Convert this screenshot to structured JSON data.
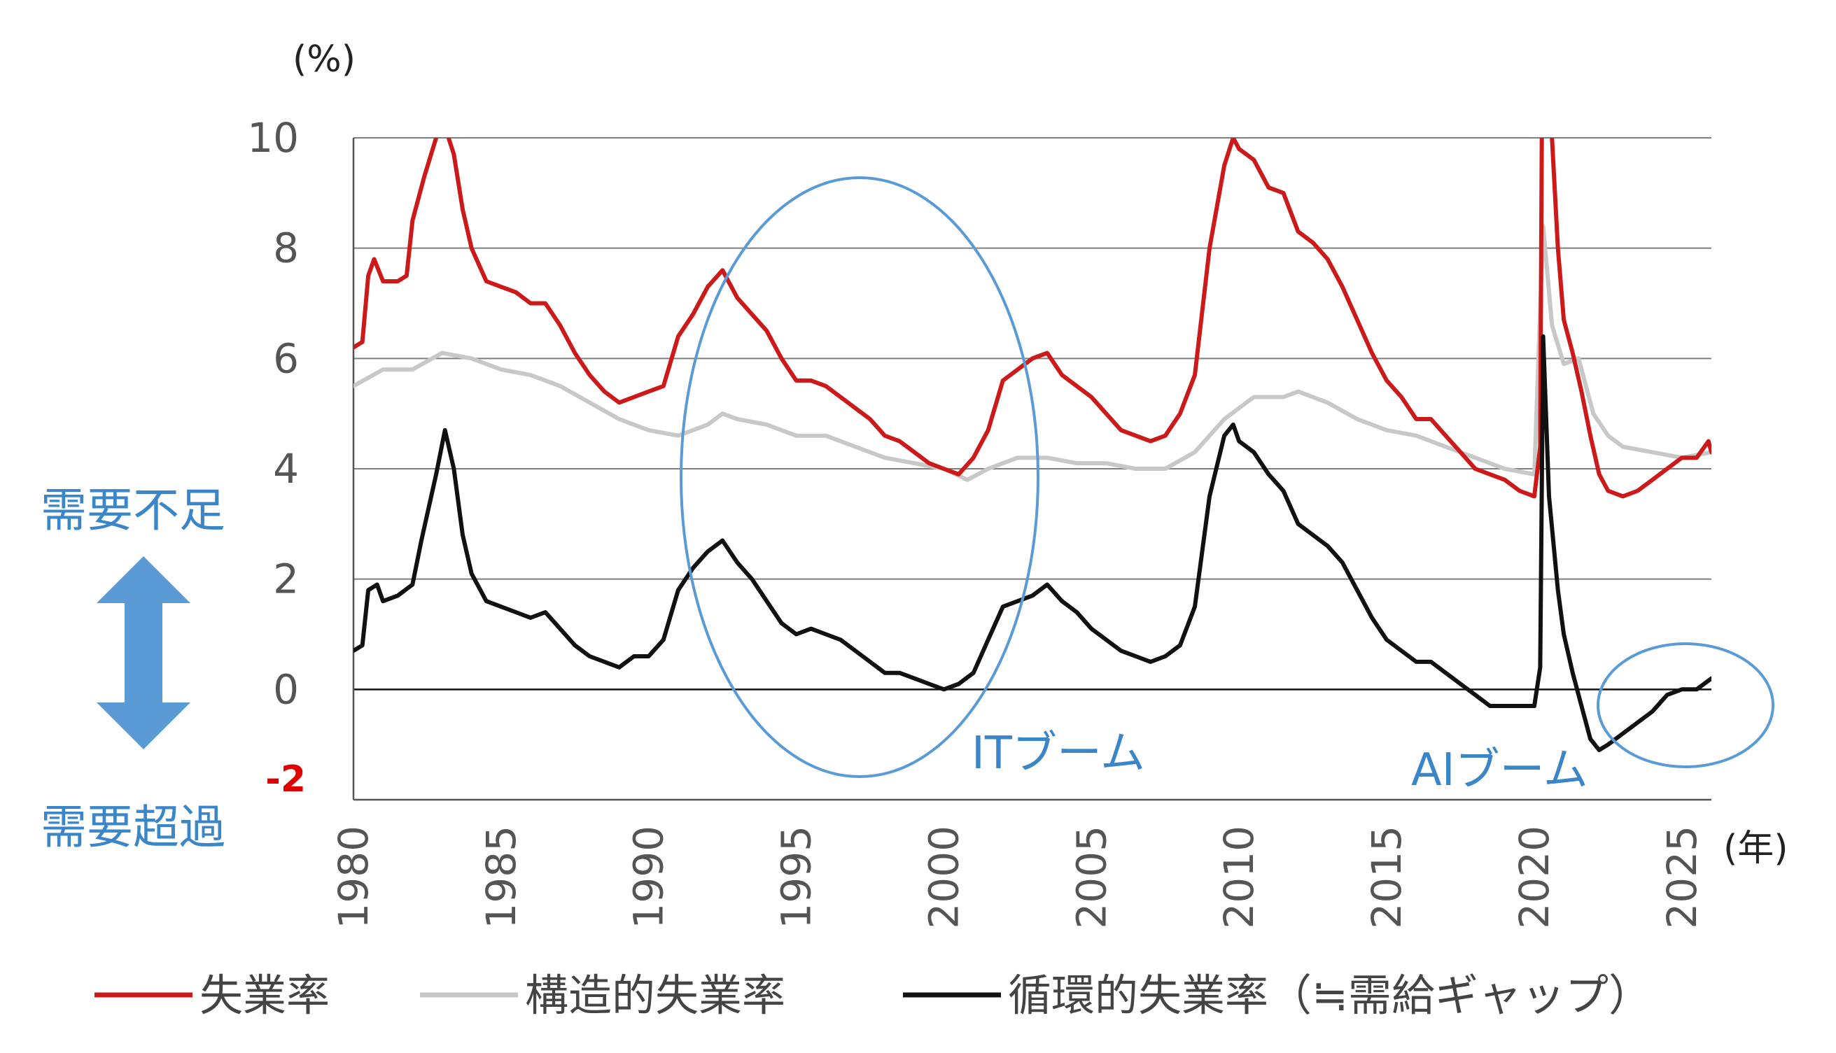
{
  "chart_data": {
    "type": "line",
    "title": "",
    "ylabel": "(%)",
    "xlabel": "(年)",
    "xlim": [
      1980,
      2026
    ],
    "ylim": [
      -2,
      10
    ],
    "yticks": [
      10,
      8,
      6,
      4,
      2,
      0,
      -2
    ],
    "xticks": [
      1980,
      1985,
      1990,
      1995,
      2000,
      2005,
      2010,
      2015,
      2020,
      2025
    ],
    "grid": true,
    "series": [
      {
        "name": "失業率",
        "color": "#cc1a1a",
        "points": [
          [
            1980.0,
            6.2
          ],
          [
            1980.3,
            6.3
          ],
          [
            1980.5,
            7.5
          ],
          [
            1980.7,
            7.8
          ],
          [
            1981.0,
            7.4
          ],
          [
            1981.5,
            7.4
          ],
          [
            1981.8,
            7.5
          ],
          [
            1982.0,
            8.5
          ],
          [
            1982.4,
            9.3
          ],
          [
            1982.8,
            10.0
          ],
          [
            1983.1,
            10.2
          ],
          [
            1983.4,
            9.7
          ],
          [
            1983.7,
            8.7
          ],
          [
            1984.0,
            8.0
          ],
          [
            1984.5,
            7.4
          ],
          [
            1985.0,
            7.3
          ],
          [
            1985.5,
            7.2
          ],
          [
            1986.0,
            7.0
          ],
          [
            1986.5,
            7.0
          ],
          [
            1987.0,
            6.6
          ],
          [
            1987.5,
            6.1
          ],
          [
            1988.0,
            5.7
          ],
          [
            1988.5,
            5.4
          ],
          [
            1989.0,
            5.2
          ],
          [
            1989.5,
            5.3
          ],
          [
            1990.0,
            5.4
          ],
          [
            1990.5,
            5.5
          ],
          [
            1991.0,
            6.4
          ],
          [
            1991.5,
            6.8
          ],
          [
            1992.0,
            7.3
          ],
          [
            1992.5,
            7.6
          ],
          [
            1993.0,
            7.1
          ],
          [
            1993.5,
            6.8
          ],
          [
            1994.0,
            6.5
          ],
          [
            1994.5,
            6.0
          ],
          [
            1995.0,
            5.6
          ],
          [
            1995.5,
            5.6
          ],
          [
            1996.0,
            5.5
          ],
          [
            1996.5,
            5.3
          ],
          [
            1997.0,
            5.1
          ],
          [
            1997.5,
            4.9
          ],
          [
            1998.0,
            4.6
          ],
          [
            1998.5,
            4.5
          ],
          [
            1999.0,
            4.3
          ],
          [
            1999.5,
            4.1
          ],
          [
            2000.0,
            4.0
          ],
          [
            2000.5,
            3.9
          ],
          [
            2001.0,
            4.2
          ],
          [
            2001.5,
            4.7
          ],
          [
            2002.0,
            5.6
          ],
          [
            2002.5,
            5.8
          ],
          [
            2003.0,
            6.0
          ],
          [
            2003.5,
            6.1
          ],
          [
            2004.0,
            5.7
          ],
          [
            2004.5,
            5.5
          ],
          [
            2005.0,
            5.3
          ],
          [
            2005.5,
            5.0
          ],
          [
            2006.0,
            4.7
          ],
          [
            2006.5,
            4.6
          ],
          [
            2007.0,
            4.5
          ],
          [
            2007.5,
            4.6
          ],
          [
            2008.0,
            5.0
          ],
          [
            2008.5,
            5.7
          ],
          [
            2009.0,
            8.0
          ],
          [
            2009.5,
            9.5
          ],
          [
            2009.8,
            10.0
          ],
          [
            2010.0,
            9.8
          ],
          [
            2010.5,
            9.6
          ],
          [
            2011.0,
            9.1
          ],
          [
            2011.5,
            9.0
          ],
          [
            2012.0,
            8.3
          ],
          [
            2012.5,
            8.1
          ],
          [
            2013.0,
            7.8
          ],
          [
            2013.5,
            7.3
          ],
          [
            2014.0,
            6.7
          ],
          [
            2014.5,
            6.1
          ],
          [
            2015.0,
            5.6
          ],
          [
            2015.5,
            5.3
          ],
          [
            2016.0,
            4.9
          ],
          [
            2016.5,
            4.9
          ],
          [
            2017.0,
            4.6
          ],
          [
            2017.5,
            4.3
          ],
          [
            2018.0,
            4.0
          ],
          [
            2018.5,
            3.9
          ],
          [
            2019.0,
            3.8
          ],
          [
            2019.5,
            3.6
          ],
          [
            2020.0,
            3.5
          ],
          [
            2020.2,
            4.4
          ],
          [
            2020.3,
            14.7
          ],
          [
            2020.5,
            11.0
          ],
          [
            2020.8,
            8.0
          ],
          [
            2021.0,
            6.7
          ],
          [
            2021.3,
            6.1
          ],
          [
            2021.6,
            5.4
          ],
          [
            2021.9,
            4.6
          ],
          [
            2022.2,
            3.9
          ],
          [
            2022.5,
            3.6
          ],
          [
            2023.0,
            3.5
          ],
          [
            2023.5,
            3.6
          ],
          [
            2024.0,
            3.8
          ],
          [
            2024.5,
            4.0
          ],
          [
            2025.0,
            4.2
          ],
          [
            2025.5,
            4.2
          ],
          [
            2025.9,
            4.5
          ],
          [
            2026.0,
            4.3
          ]
        ]
      },
      {
        "name": "構造的失業率",
        "color": "#c8c8c8",
        "points": [
          [
            1980.0,
            5.5
          ],
          [
            1981.0,
            5.8
          ],
          [
            1982.0,
            5.8
          ],
          [
            1983.0,
            6.1
          ],
          [
            1984.0,
            6.0
          ],
          [
            1985.0,
            5.8
          ],
          [
            1986.0,
            5.7
          ],
          [
            1987.0,
            5.5
          ],
          [
            1988.0,
            5.2
          ],
          [
            1989.0,
            4.9
          ],
          [
            1990.0,
            4.7
          ],
          [
            1991.0,
            4.6
          ],
          [
            1992.0,
            4.8
          ],
          [
            1992.5,
            5.0
          ],
          [
            1993.0,
            4.9
          ],
          [
            1994.0,
            4.8
          ],
          [
            1995.0,
            4.6
          ],
          [
            1996.0,
            4.6
          ],
          [
            1997.0,
            4.4
          ],
          [
            1998.0,
            4.2
          ],
          [
            1999.0,
            4.1
          ],
          [
            2000.0,
            4.0
          ],
          [
            2000.8,
            3.8
          ],
          [
            2001.5,
            4.0
          ],
          [
            2002.5,
            4.2
          ],
          [
            2003.5,
            4.2
          ],
          [
            2004.5,
            4.1
          ],
          [
            2005.5,
            4.1
          ],
          [
            2006.5,
            4.0
          ],
          [
            2007.5,
            4.0
          ],
          [
            2008.5,
            4.3
          ],
          [
            2009.5,
            4.9
          ],
          [
            2010.5,
            5.3
          ],
          [
            2011.5,
            5.3
          ],
          [
            2012.0,
            5.4
          ],
          [
            2013.0,
            5.2
          ],
          [
            2014.0,
            4.9
          ],
          [
            2015.0,
            4.7
          ],
          [
            2016.0,
            4.6
          ],
          [
            2017.0,
            4.4
          ],
          [
            2018.0,
            4.2
          ],
          [
            2019.0,
            4.0
          ],
          [
            2020.0,
            3.9
          ],
          [
            2020.3,
            8.4
          ],
          [
            2020.6,
            6.6
          ],
          [
            2021.0,
            5.9
          ],
          [
            2021.5,
            6.0
          ],
          [
            2022.0,
            5.0
          ],
          [
            2022.5,
            4.6
          ],
          [
            2023.0,
            4.4
          ],
          [
            2024.0,
            4.3
          ],
          [
            2025.0,
            4.2
          ],
          [
            2026.0,
            4.3
          ]
        ]
      },
      {
        "name": "循環的失業率（≒需給ギャップ）",
        "color": "#111111",
        "points": [
          [
            1980.0,
            0.7
          ],
          [
            1980.3,
            0.8
          ],
          [
            1980.5,
            1.8
          ],
          [
            1980.8,
            1.9
          ],
          [
            1981.0,
            1.6
          ],
          [
            1981.5,
            1.7
          ],
          [
            1982.0,
            1.9
          ],
          [
            1982.3,
            2.7
          ],
          [
            1982.8,
            3.9
          ],
          [
            1983.1,
            4.7
          ],
          [
            1983.4,
            4.0
          ],
          [
            1983.7,
            2.8
          ],
          [
            1984.0,
            2.1
          ],
          [
            1984.5,
            1.6
          ],
          [
            1985.0,
            1.5
          ],
          [
            1985.5,
            1.4
          ],
          [
            1986.0,
            1.3
          ],
          [
            1986.5,
            1.4
          ],
          [
            1987.0,
            1.1
          ],
          [
            1987.5,
            0.8
          ],
          [
            1988.0,
            0.6
          ],
          [
            1988.5,
            0.5
          ],
          [
            1989.0,
            0.4
          ],
          [
            1989.5,
            0.6
          ],
          [
            1990.0,
            0.6
          ],
          [
            1990.5,
            0.9
          ],
          [
            1991.0,
            1.8
          ],
          [
            1991.5,
            2.2
          ],
          [
            1992.0,
            2.5
          ],
          [
            1992.5,
            2.7
          ],
          [
            1993.0,
            2.3
          ],
          [
            1993.5,
            2.0
          ],
          [
            1994.0,
            1.6
          ],
          [
            1994.5,
            1.2
          ],
          [
            1995.0,
            1.0
          ],
          [
            1995.5,
            1.1
          ],
          [
            1996.0,
            1.0
          ],
          [
            1996.5,
            0.9
          ],
          [
            1997.0,
            0.7
          ],
          [
            1997.5,
            0.5
          ],
          [
            1998.0,
            0.3
          ],
          [
            1998.5,
            0.3
          ],
          [
            1999.0,
            0.2
          ],
          [
            1999.5,
            0.1
          ],
          [
            2000.0,
            0.0
          ],
          [
            2000.5,
            0.1
          ],
          [
            2001.0,
            0.3
          ],
          [
            2001.5,
            0.9
          ],
          [
            2002.0,
            1.5
          ],
          [
            2002.5,
            1.6
          ],
          [
            2003.0,
            1.7
          ],
          [
            2003.5,
            1.9
          ],
          [
            2004.0,
            1.6
          ],
          [
            2004.5,
            1.4
          ],
          [
            2005.0,
            1.1
          ],
          [
            2005.5,
            0.9
          ],
          [
            2006.0,
            0.7
          ],
          [
            2006.5,
            0.6
          ],
          [
            2007.0,
            0.5
          ],
          [
            2007.5,
            0.6
          ],
          [
            2008.0,
            0.8
          ],
          [
            2008.5,
            1.5
          ],
          [
            2009.0,
            3.5
          ],
          [
            2009.5,
            4.6
          ],
          [
            2009.8,
            4.8
          ],
          [
            2010.0,
            4.5
          ],
          [
            2010.5,
            4.3
          ],
          [
            2011.0,
            3.9
          ],
          [
            2011.5,
            3.6
          ],
          [
            2012.0,
            3.0
          ],
          [
            2012.5,
            2.8
          ],
          [
            2013.0,
            2.6
          ],
          [
            2013.5,
            2.3
          ],
          [
            2014.0,
            1.8
          ],
          [
            2014.5,
            1.3
          ],
          [
            2015.0,
            0.9
          ],
          [
            2015.5,
            0.7
          ],
          [
            2016.0,
            0.5
          ],
          [
            2016.5,
            0.5
          ],
          [
            2017.0,
            0.3
          ],
          [
            2017.5,
            0.1
          ],
          [
            2018.0,
            -0.1
          ],
          [
            2018.5,
            -0.3
          ],
          [
            2019.0,
            -0.3
          ],
          [
            2019.5,
            -0.3
          ],
          [
            2020.0,
            -0.3
          ],
          [
            2020.2,
            0.4
          ],
          [
            2020.3,
            6.4
          ],
          [
            2020.5,
            3.5
          ],
          [
            2020.8,
            1.8
          ],
          [
            2021.0,
            1.0
          ],
          [
            2021.3,
            0.3
          ],
          [
            2021.6,
            -0.3
          ],
          [
            2021.9,
            -0.9
          ],
          [
            2022.2,
            -1.1
          ],
          [
            2022.5,
            -1.0
          ],
          [
            2023.0,
            -0.8
          ],
          [
            2023.5,
            -0.6
          ],
          [
            2024.0,
            -0.4
          ],
          [
            2024.5,
            -0.1
          ],
          [
            2025.0,
            0.0
          ],
          [
            2025.5,
            0.0
          ],
          [
            2026.0,
            0.2
          ]
        ]
      }
    ]
  },
  "labels": {
    "demand_shortage": "需要不足",
    "demand_excess": "需要超過",
    "it_boom": "ITブーム",
    "ai_boom": "AIブーム"
  }
}
